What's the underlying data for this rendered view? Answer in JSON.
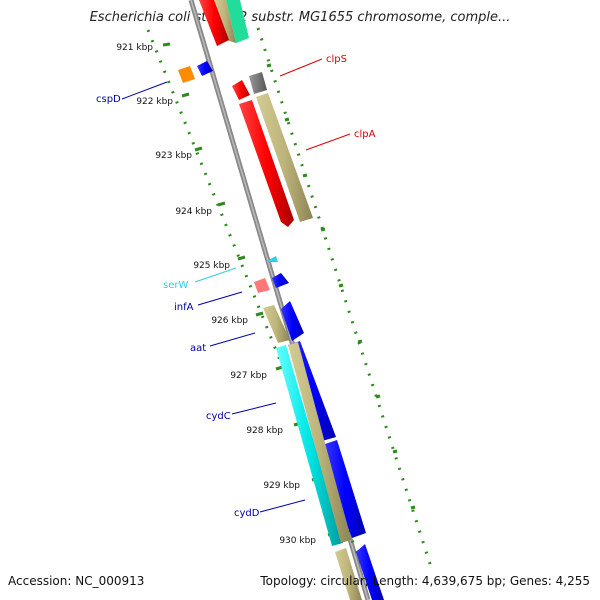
{
  "title": "Escherichia coli str. K-12 substr. MG1655 chromosome, comple...",
  "accession": "Accession: NC_000913",
  "summary": "Topology: circular; Length: 4,639,675 bp; Genes: 4,255",
  "ticks": [
    {
      "label": "921 kbp"
    },
    {
      "label": "922 kbp"
    },
    {
      "label": "923 kbp"
    },
    {
      "label": "924 kbp"
    },
    {
      "label": "925 kbp"
    },
    {
      "label": "926 kbp"
    },
    {
      "label": "927 kbp"
    },
    {
      "label": "928 kbp"
    },
    {
      "label": "929 kbp"
    },
    {
      "label": "930 kbp"
    }
  ],
  "genes": [
    {
      "name": "clpS",
      "color": "#dd0000"
    },
    {
      "name": "clpA",
      "color": "#dd0000"
    },
    {
      "name": "cspD",
      "color": "#0000aa"
    },
    {
      "name": "serW",
      "color": "#33ccdd"
    },
    {
      "name": "infA",
      "color": "#0000aa"
    },
    {
      "name": "aat",
      "color": "#0000aa"
    },
    {
      "name": "cydC",
      "color": "#0000aa"
    },
    {
      "name": "cydD",
      "color": "#0000aa"
    }
  ],
  "colors": {
    "cds_forward": "#ff0000",
    "cds_reverse": "#0000ff",
    "gene": "#bdb47a",
    "trna": "#33ccee",
    "mrna_cyan": "#00e5e5",
    "other": "#ff8800",
    "pseudo": "#ff7777",
    "grey": "#777777",
    "teal": "#22dd99",
    "tick": "#2e8b1e",
    "backbone": "#888888"
  }
}
